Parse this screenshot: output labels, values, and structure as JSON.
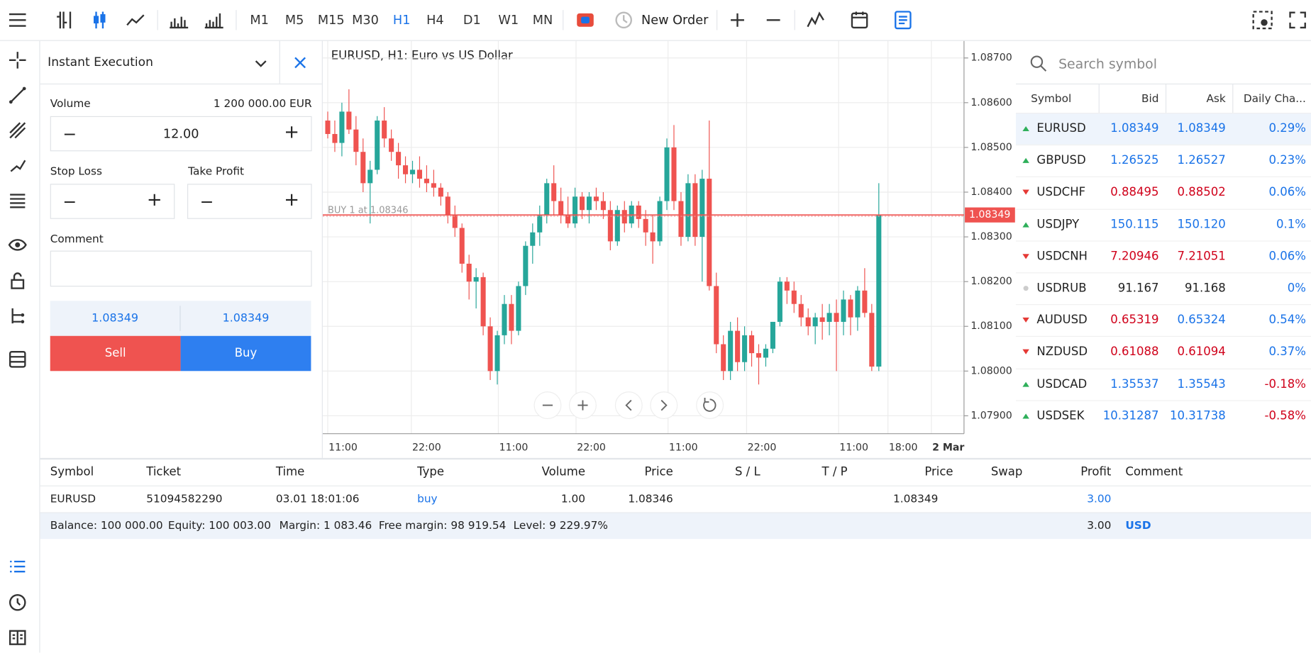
{
  "toolbar": {
    "timeframes": [
      "M1",
      "M5",
      "M15",
      "M30",
      "H1",
      "H4",
      "D1",
      "W1",
      "MN"
    ],
    "active": "H1",
    "new_order": "New Order"
  },
  "order_panel": {
    "mode": "Instant Execution",
    "volume_label": "Volume",
    "volume_amount": "1 200 000.00 EUR",
    "volume": "12.00",
    "stop_loss": "Stop Loss",
    "take_profit": "Take Profit",
    "comment": "Comment",
    "bid": "1.08349",
    "ask": "1.08349",
    "sell": "Sell",
    "buy": "Buy"
  },
  "chart": {
    "type": "candlestick",
    "title": "EURUSD, H1: Euro vs US Dollar",
    "up_color": "#26a69a",
    "down_color": "#ef5350",
    "ylim": [
      1.0786,
      1.08738
    ],
    "yticks": [
      {
        "value": 1.087,
        "label": "1.08700"
      },
      {
        "value": 1.086,
        "label": "1.08600"
      },
      {
        "value": 1.085,
        "label": "1.08500"
      },
      {
        "value": 1.084,
        "label": "1.08400"
      },
      {
        "value": 1.083,
        "label": "1.08300"
      },
      {
        "value": 1.082,
        "label": "1.08200"
      },
      {
        "value": 1.081,
        "label": "1.08100"
      },
      {
        "value": 1.08,
        "label": "1.08000"
      },
      {
        "value": 1.079,
        "label": "1.07900"
      }
    ],
    "time_labels": [
      "11:00",
      "22:00",
      "11:00",
      "22:00",
      "11:00",
      "22:00",
      "11:00",
      "18:00",
      "2 Mar"
    ],
    "price_line": {
      "value": 1.08349,
      "label": "1.08349"
    },
    "order_line": {
      "value": 1.08346,
      "label": "BUY 1 at 1.08346"
    },
    "candles": [
      [
        1.0856,
        1.0858,
        1.0852,
        1.0853
      ],
      [
        1.0853,
        1.0856,
        1.0849,
        1.0851
      ],
      [
        1.0851,
        1.086,
        1.0848,
        1.0858
      ],
      [
        1.0858,
        1.0863,
        1.0853,
        1.0854
      ],
      [
        1.0854,
        1.0857,
        1.0846,
        1.0849
      ],
      [
        1.0849,
        1.0852,
        1.084,
        1.0842
      ],
      [
        1.0842,
        1.0847,
        1.0833,
        1.0845
      ],
      [
        1.0845,
        1.0857,
        1.0844,
        1.0856
      ],
      [
        1.0856,
        1.0859,
        1.085,
        1.0852
      ],
      [
        1.0852,
        1.0854,
        1.0847,
        1.0849
      ],
      [
        1.0849,
        1.0851,
        1.0843,
        1.0846
      ],
      [
        1.0846,
        1.0848,
        1.0842,
        1.0844
      ],
      [
        1.0844,
        1.0847,
        1.0842,
        1.0845
      ],
      [
        1.0845,
        1.0848,
        1.0841,
        1.0843
      ],
      [
        1.0843,
        1.0846,
        1.084,
        1.0842
      ],
      [
        1.0842,
        1.0845,
        1.0839,
        1.0841
      ],
      [
        1.0841,
        1.0842,
        1.0837,
        1.0839
      ],
      [
        1.0839,
        1.084,
        1.0833,
        1.0835
      ],
      [
        1.0835,
        1.0837,
        1.083,
        1.0832
      ],
      [
        1.0832,
        1.0833,
        1.0822,
        1.0824
      ],
      [
        1.0824,
        1.0826,
        1.0816,
        1.082
      ],
      [
        1.082,
        1.0823,
        1.0814,
        1.0821
      ],
      [
        1.0821,
        1.0822,
        1.0808,
        1.081
      ],
      [
        1.081,
        1.0812,
        1.0798,
        1.08
      ],
      [
        1.08,
        1.0809,
        1.0797,
        1.0808
      ],
      [
        1.0808,
        1.0817,
        1.0806,
        1.0815
      ],
      [
        1.0815,
        1.0817,
        1.0806,
        1.0809
      ],
      [
        1.0809,
        1.082,
        1.0808,
        1.0819
      ],
      [
        1.0819,
        1.0829,
        1.0817,
        1.0828
      ],
      [
        1.0828,
        1.0833,
        1.0824,
        1.0831
      ],
      [
        1.0831,
        1.0837,
        1.0828,
        1.0835
      ],
      [
        1.0835,
        1.0843,
        1.0833,
        1.0842
      ],
      [
        1.0842,
        1.0846,
        1.0835,
        1.0838
      ],
      [
        1.0838,
        1.0841,
        1.0833,
        1.0835
      ],
      [
        1.0835,
        1.0839,
        1.0832,
        1.0833
      ],
      [
        1.0833,
        1.0841,
        1.0832,
        1.0839
      ],
      [
        1.0839,
        1.084,
        1.0834,
        1.0836
      ],
      [
        1.0836,
        1.084,
        1.0833,
        1.0839
      ],
      [
        1.0839,
        1.0841,
        1.0836,
        1.0838
      ],
      [
        1.0838,
        1.084,
        1.0834,
        1.0836
      ],
      [
        1.0836,
        1.0838,
        1.0827,
        1.0829
      ],
      [
        1.0829,
        1.0837,
        1.0828,
        1.0836
      ],
      [
        1.0836,
        1.0838,
        1.0831,
        1.0833
      ],
      [
        1.0833,
        1.0838,
        1.0832,
        1.0837
      ],
      [
        1.0837,
        1.0838,
        1.0832,
        1.0834
      ],
      [
        1.0834,
        1.0836,
        1.0828,
        1.0831
      ],
      [
        1.0831,
        1.0835,
        1.0824,
        1.0829
      ],
      [
        1.0829,
        1.0839,
        1.0828,
        1.0838
      ],
      [
        1.0838,
        1.0852,
        1.0836,
        1.085
      ],
      [
        1.085,
        1.0855,
        1.0836,
        1.0838
      ],
      [
        1.0838,
        1.084,
        1.0828,
        1.083
      ],
      [
        1.083,
        1.0844,
        1.0829,
        1.0842
      ],
      [
        1.0842,
        1.0844,
        1.0828,
        1.083
      ],
      [
        1.083,
        1.0845,
        1.082,
        1.0843
      ],
      [
        1.0843,
        1.0856,
        1.0818,
        1.0819
      ],
      [
        1.0819,
        1.0822,
        1.0804,
        1.0806
      ],
      [
        1.0806,
        1.0808,
        1.0798,
        1.08
      ],
      [
        1.08,
        1.0811,
        1.0798,
        1.0809
      ],
      [
        1.0809,
        1.0812,
        1.08,
        1.0802
      ],
      [
        1.0802,
        1.081,
        1.08,
        1.0808
      ],
      [
        1.0808,
        1.0809,
        1.0801,
        1.0804
      ],
      [
        1.0804,
        1.0806,
        1.0797,
        1.0803
      ],
      [
        1.0803,
        1.0806,
        1.0801,
        1.0805
      ],
      [
        1.0805,
        1.0811,
        1.0804,
        1.0811
      ],
      [
        1.0811,
        1.0821,
        1.081,
        1.082
      ],
      [
        1.082,
        1.0821,
        1.0815,
        1.0818
      ],
      [
        1.0818,
        1.082,
        1.0813,
        1.0815
      ],
      [
        1.0815,
        1.0817,
        1.081,
        1.0812
      ],
      [
        1.0812,
        1.0814,
        1.0808,
        1.081
      ],
      [
        1.081,
        1.0813,
        1.0806,
        1.0812
      ],
      [
        1.0812,
        1.0815,
        1.0807,
        1.0811
      ],
      [
        1.0811,
        1.0815,
        1.0808,
        1.0813
      ],
      [
        1.0813,
        1.0816,
        1.08,
        1.0811
      ],
      [
        1.0811,
        1.0818,
        1.0808,
        1.0816
      ],
      [
        1.0816,
        1.0817,
        1.0808,
        1.0812
      ],
      [
        1.0812,
        1.0819,
        1.0809,
        1.0818
      ],
      [
        1.0818,
        1.0823,
        1.0812,
        1.0813
      ],
      [
        1.0813,
        1.0815,
        1.08,
        1.0801
      ],
      [
        1.0801,
        1.0842,
        1.08,
        1.08349
      ]
    ]
  },
  "market_watch": {
    "search": "Search symbol",
    "headers": [
      "Symbol",
      "Bid",
      "Ask",
      "Daily Cha..."
    ],
    "rows": [
      {
        "symbol": "EURUSD",
        "dir": "up",
        "bid": "1.08349",
        "ask": "1.08349",
        "change": "0.29%",
        "bid_color": "#1a73e8",
        "ask_color": "#1a73e8",
        "change_color": "#1a73e8"
      },
      {
        "symbol": "GBPUSD",
        "dir": "up",
        "bid": "1.26525",
        "ask": "1.26527",
        "change": "0.23%",
        "bid_color": "#1a73e8",
        "ask_color": "#1a73e8",
        "change_color": "#1a73e8"
      },
      {
        "symbol": "USDCHF",
        "dir": "down",
        "bid": "0.88495",
        "ask": "0.88502",
        "change": "0.06%",
        "bid_color": "#d0021b",
        "ask_color": "#d0021b",
        "change_color": "#1a73e8"
      },
      {
        "symbol": "USDJPY",
        "dir": "up",
        "bid": "150.115",
        "ask": "150.120",
        "change": "0.1%",
        "bid_color": "#1a73e8",
        "ask_color": "#1a73e8",
        "change_color": "#1a73e8"
      },
      {
        "symbol": "USDCNH",
        "dir": "down",
        "bid": "7.20946",
        "ask": "7.21051",
        "change": "0.06%",
        "bid_color": "#d0021b",
        "ask_color": "#d0021b",
        "change_color": "#1a73e8"
      },
      {
        "symbol": "USDRUB",
        "dir": "flat",
        "bid": "91.167",
        "ask": "91.168",
        "change": "0%",
        "bid_color": "#222222",
        "ask_color": "#222222",
        "change_color": "#1a73e8"
      },
      {
        "symbol": "AUDUSD",
        "dir": "down",
        "bid": "0.65319",
        "ask": "0.65324",
        "change": "0.54%",
        "bid_color": "#d0021b",
        "ask_color": "#1a73e8",
        "change_color": "#1a73e8"
      },
      {
        "symbol": "NZDUSD",
        "dir": "down",
        "bid": "0.61088",
        "ask": "0.61094",
        "change": "0.37%",
        "bid_color": "#d0021b",
        "ask_color": "#d0021b",
        "change_color": "#1a73e8"
      },
      {
        "symbol": "USDCAD",
        "dir": "up",
        "bid": "1.35537",
        "ask": "1.35543",
        "change": "-0.18%",
        "bid_color": "#1a73e8",
        "ask_color": "#1a73e8",
        "change_color": "#d0021b"
      },
      {
        "symbol": "USDSEK",
        "dir": "up",
        "bid": "10.31287",
        "ask": "10.31738",
        "change": "-0.58%",
        "bid_color": "#1a73e8",
        "ask_color": "#1a73e8",
        "change_color": "#d0021b"
      }
    ]
  },
  "trades": {
    "headers": [
      "Symbol",
      "Ticket",
      "Time",
      "Type",
      "Volume",
      "Price",
      "S / L",
      "T / P",
      "Price",
      "Swap",
      "Profit",
      "Comment"
    ],
    "row": {
      "symbol": "EURUSD",
      "ticket": "51094582290",
      "time": "03.01 18:01:06",
      "type": "buy",
      "volume": "1.00",
      "price": "1.08346",
      "current": "1.08349",
      "profit": "3.00"
    },
    "summary": {
      "balance": "Balance: 100 000.00",
      "equity": "Equity: 100 003.00",
      "margin": "Margin: 1 083.46",
      "free_margin": "Free margin: 98 919.54",
      "level": "Level: 9 229.97%",
      "profit": "3.00",
      "currency": "USD"
    }
  }
}
